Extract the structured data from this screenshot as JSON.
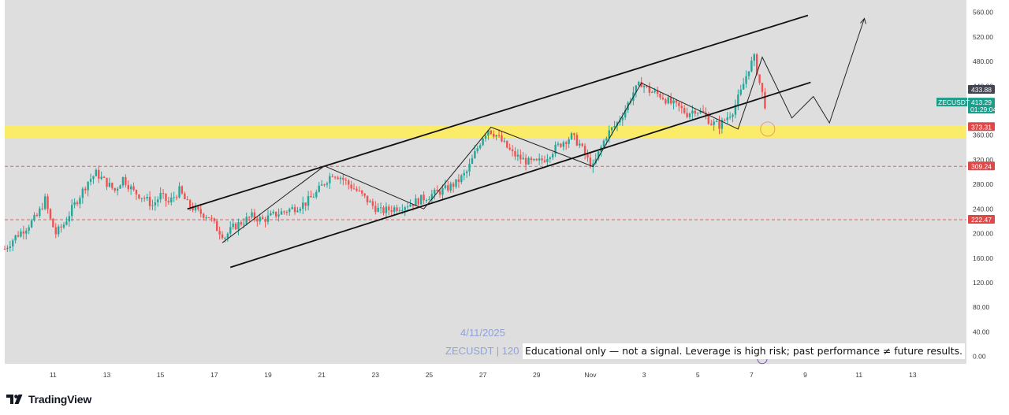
{
  "brand": {
    "name": "TradingView",
    "logo_icon": "tradingview-logo-icon"
  },
  "watermark": {
    "date": "4/11/2025",
    "symbol": "ZECUSDT | 120"
  },
  "disclaimer": "Educational only — not a signal. Leverage is high risk; past performance ≠ future results.",
  "colors": {
    "chart_bg": "#dedede",
    "up": "#26a69a",
    "down": "#ef5350",
    "level_zone": "#ffef55",
    "dashed_line": "#e06060",
    "price_tag_dark": "#434651",
    "price_tag_red": "#e04848",
    "price_tag_green": "#1e9d8a",
    "channel": "#111111"
  },
  "chart_data": {
    "type": "candlestick",
    "symbol_tag": "ZECUSDT",
    "last_price": "413.29",
    "countdown": "01:29:04",
    "high_tag": "433.88",
    "y_ticks": [
      "560.00",
      "520.00",
      "480.00",
      "440.00",
      "400.00",
      "360.00",
      "320.00",
      "280.00",
      "240.00",
      "200.00",
      "160.00",
      "120.00",
      "80.00",
      "40.00",
      "0.00"
    ],
    "y_tick_values": [
      560,
      520,
      480,
      440,
      400,
      360,
      320,
      280,
      240,
      200,
      160,
      120,
      80,
      40,
      0
    ],
    "ylim": [
      -12,
      580
    ],
    "x_ticks": [
      "11",
      "13",
      "15",
      "17",
      "19",
      "21",
      "23",
      "25",
      "27",
      "29",
      "Nov",
      "3",
      "5",
      "7",
      "9",
      "11",
      "13"
    ],
    "x_tick_days": [
      11,
      13,
      15,
      17,
      19,
      21,
      23,
      25,
      27,
      29,
      31,
      33,
      35,
      37,
      39,
      41,
      43
    ],
    "x_range_days": [
      9.2,
      45.0
    ],
    "levels": [
      {
        "label": "373.31",
        "value": 373.31,
        "style": "zone",
        "zone_low": 355,
        "zone_high": 376
      },
      {
        "label": "309.24",
        "value": 309.24,
        "style": "dashed"
      },
      {
        "label": "222.47",
        "value": 222.47,
        "style": "dashed"
      }
    ],
    "price_path": [
      [
        9.2,
        175
      ],
      [
        9.6,
        195
      ],
      [
        10.0,
        210
      ],
      [
        10.4,
        228
      ],
      [
        10.7,
        255
      ],
      [
        10.9,
        222
      ],
      [
        11.1,
        200
      ],
      [
        11.4,
        215
      ],
      [
        11.7,
        240
      ],
      [
        12.0,
        262
      ],
      [
        12.3,
        285
      ],
      [
        12.6,
        298
      ],
      [
        13.0,
        282
      ],
      [
        13.3,
        270
      ],
      [
        13.6,
        290
      ],
      [
        14.0,
        268
      ],
      [
        14.4,
        258
      ],
      [
        14.7,
        246
      ],
      [
        15.0,
        262
      ],
      [
        15.3,
        250
      ],
      [
        15.7,
        270
      ],
      [
        16.0,
        248
      ],
      [
        16.4,
        235
      ],
      [
        16.8,
        228
      ],
      [
        17.1,
        208
      ],
      [
        17.4,
        195
      ],
      [
        17.7,
        210
      ],
      [
        18.0,
        218
      ],
      [
        18.4,
        228
      ],
      [
        18.8,
        222
      ],
      [
        19.2,
        230
      ],
      [
        19.6,
        236
      ],
      [
        20.0,
        242
      ],
      [
        20.4,
        250
      ],
      [
        20.8,
        266
      ],
      [
        21.1,
        283
      ],
      [
        21.4,
        298
      ],
      [
        21.7,
        292
      ],
      [
        22.0,
        280
      ],
      [
        22.3,
        270
      ],
      [
        22.6,
        258
      ],
      [
        22.9,
        245
      ],
      [
        23.2,
        236
      ],
      [
        23.6,
        240
      ],
      [
        24.0,
        245
      ],
      [
        24.4,
        250
      ],
      [
        24.8,
        258
      ],
      [
        25.2,
        265
      ],
      [
        25.6,
        272
      ],
      [
        26.0,
        282
      ],
      [
        26.4,
        300
      ],
      [
        26.7,
        330
      ],
      [
        27.0,
        358
      ],
      [
        27.2,
        370
      ],
      [
        27.5,
        360
      ],
      [
        27.8,
        345
      ],
      [
        28.1,
        330
      ],
      [
        28.4,
        322
      ],
      [
        28.7,
        316
      ],
      [
        29.0,
        315
      ],
      [
        29.3,
        322
      ],
      [
        29.6,
        335
      ],
      [
        30.0,
        350
      ],
      [
        30.3,
        358
      ],
      [
        30.6,
        345
      ],
      [
        30.9,
        320
      ],
      [
        31.1,
        308
      ],
      [
        31.3,
        330
      ],
      [
        31.6,
        360
      ],
      [
        32.0,
        380
      ],
      [
        32.3,
        402
      ],
      [
        32.6,
        430
      ],
      [
        32.9,
        445
      ],
      [
        33.2,
        432
      ],
      [
        33.6,
        425
      ],
      [
        34.0,
        412
      ],
      [
        34.3,
        405
      ],
      [
        34.6,
        395
      ],
      [
        34.9,
        402
      ],
      [
        35.2,
        395
      ],
      [
        35.5,
        380
      ],
      [
        35.8,
        376
      ],
      [
        36.0,
        385
      ],
      [
        36.3,
        400
      ],
      [
        36.6,
        430
      ],
      [
        36.9,
        470
      ],
      [
        37.1,
        485
      ],
      [
        37.3,
        445
      ],
      [
        37.5,
        410
      ],
      [
        37.6,
        413
      ]
    ],
    "channel_upper": [
      [
        16.0,
        240
      ],
      [
        39.1,
        555
      ]
    ],
    "channel_lower": [
      [
        17.6,
        145
      ],
      [
        39.2,
        446
      ]
    ],
    "projection_path": [
      [
        17.3,
        185
      ],
      [
        21.1,
        310
      ],
      [
        24.8,
        240
      ],
      [
        27.3,
        373
      ],
      [
        31.1,
        309
      ],
      [
        32.9,
        445
      ],
      [
        36.5,
        370
      ],
      [
        37.4,
        487
      ],
      [
        38.5,
        388
      ],
      [
        39.3,
        423
      ],
      [
        39.9,
        380
      ],
      [
        41.2,
        550
      ]
    ],
    "projection_arrow_tip": [
      41.2,
      550
    ],
    "lower_channel_target_circle": [
      37.6,
      370
    ]
  }
}
